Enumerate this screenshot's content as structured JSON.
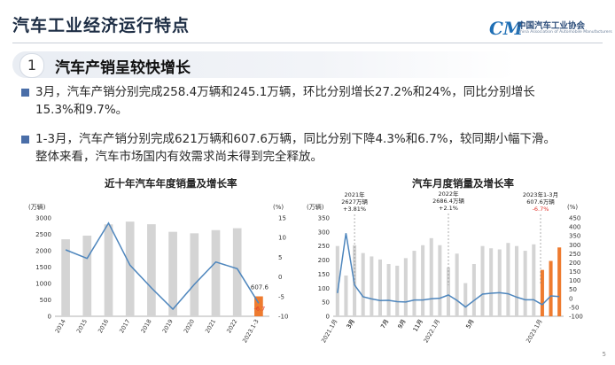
{
  "header": {
    "title": "汽车工业经济运行特点"
  },
  "logo": {
    "name_cn": "中国汽车工业协会",
    "name_en": "China Association of Automobile Manufacturers",
    "mark": "CM"
  },
  "section": {
    "number": "1",
    "title": "汽车产销呈较快增长"
  },
  "paragraphs": [
    {
      "line1": "3月，汽车产销分别完成258.4万辆和245.1万辆，环比分别增长27.2%和24%，同比分别增长",
      "line2": "15.3%和9.7%。"
    },
    {
      "line1": "1-3月，汽车产销分别完成621万辆和607.6万辆，同比分别下降4.3%和6.7%，较同期小幅下滑。",
      "line2": "整体来看，汽车市场国内有效需求尚未得到完全释放。"
    }
  ],
  "page_number": "5",
  "colors": {
    "bar": "#d4d4d4",
    "highlight": "#ee7b2f",
    "line": "#4e86bd",
    "bullet": "#4a6ea8",
    "title": "#1d2d44",
    "neg_label": "#e0342b"
  },
  "chart_data": [
    {
      "type": "bar",
      "title": "近十年汽车年度销量及增长率",
      "ylabel_left": "(万辆)",
      "ylabel_right": "(%)",
      "ylim_left": [
        0,
        3000
      ],
      "ylim_right": [
        -10,
        15
      ],
      "yticks_left": [
        0,
        500,
        1000,
        1500,
        2000,
        2500,
        3000
      ],
      "yticks_right": [
        -10,
        -5,
        0,
        5,
        10,
        15
      ],
      "categories": [
        "2014",
        "2015",
        "2016",
        "2017",
        "2018",
        "2019",
        "2020",
        "2021",
        "2022",
        "2023.1-3"
      ],
      "series": [
        {
          "type": "bar",
          "axis": "left",
          "values": [
            2349,
            2460,
            2803,
            2888,
            2808,
            2577,
            2531,
            2628,
            2686,
            607.6
          ]
        },
        {
          "type": "line",
          "axis": "right",
          "values": [
            6.9,
            4.7,
            13.7,
            3.0,
            -2.8,
            -8.2,
            -1.9,
            3.8,
            2.1,
            -6.7
          ]
        }
      ],
      "annotations": [
        {
          "category": "2023.1-3",
          "text": "607.6"
        },
        {
          "category": "2023.1-3",
          "text": "-6.7"
        }
      ],
      "grid": false
    },
    {
      "type": "bar",
      "title": "汽车月度销量及增长率",
      "ylabel_left": "(万辆)",
      "ylabel_right": "(%)",
      "ylim_left": [
        0,
        350
      ],
      "ylim_right": [
        -100,
        450
      ],
      "yticks_left": [
        0,
        50,
        100,
        150,
        200,
        250,
        300,
        350
      ],
      "yticks_right": [
        -100,
        -50,
        0,
        50,
        100,
        150,
        200,
        250,
        300,
        350,
        400,
        450
      ],
      "categories": [
        "2021.1月",
        "2",
        "3月",
        "4",
        "5",
        "6",
        "7月",
        "8",
        "9月",
        "10",
        "11月",
        "12",
        "2022.1月",
        "2",
        "3月",
        "4",
        "5月",
        "6",
        "7月",
        "8",
        "9月",
        "10",
        "11月",
        "12",
        "2023.1月",
        "2",
        "3月"
      ],
      "tick_labels": [
        "2021.1月",
        "3月",
        "5月",
        "7月",
        "9月",
        "11月",
        "2022.1月",
        "3月",
        "5月",
        "7月",
        "9月",
        "11月",
        "2023.1月",
        "3月"
      ],
      "series": [
        {
          "type": "bar",
          "axis": "left",
          "values": [
            250,
            145,
            253,
            225,
            213,
            202,
            186,
            180,
            207,
            233,
            253,
            278,
            253,
            174,
            223,
            118,
            186,
            250,
            242,
            238,
            261,
            250,
            233,
            256,
            165,
            197,
            245
          ]
        },
        {
          "type": "line",
          "axis": "right",
          "values": [
            30,
            365,
            75,
            9,
            -3,
            -12,
            -11,
            -18,
            -20,
            -9,
            -9,
            -2,
            1,
            19,
            -11,
            -48,
            -12,
            24,
            29,
            32,
            26,
            7,
            -8,
            -8,
            -35,
            14,
            10
          ]
        }
      ],
      "annotations": [
        {
          "category": "2021.1月",
          "lines": [
            "2021年",
            "2627万辆",
            "+3.81%"
          ]
        },
        {
          "category": "2022.1月",
          "lines": [
            "2022年",
            "2686.4万辆",
            "+2.1%"
          ]
        },
        {
          "category": "2023.1月",
          "lines": [
            "2023年1-3月",
            "607.6万辆",
            "-6.7%"
          ]
        }
      ],
      "grid": false
    }
  ]
}
